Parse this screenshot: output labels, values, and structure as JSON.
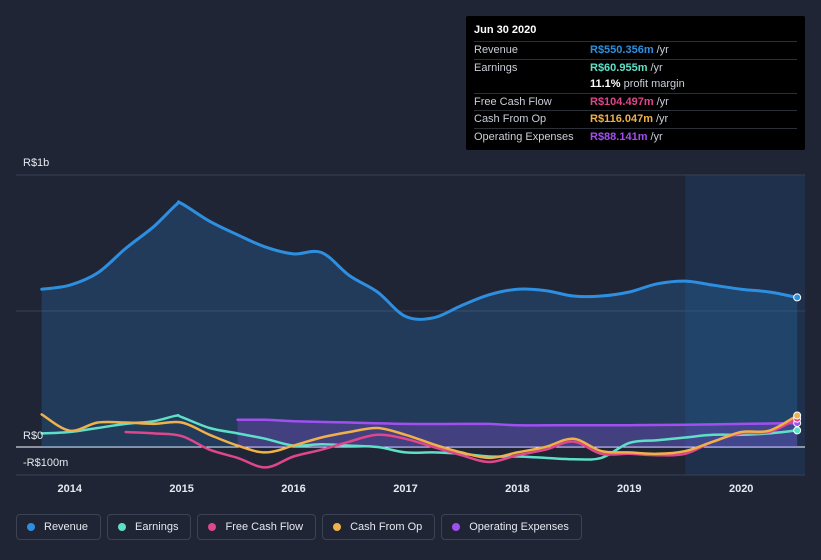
{
  "tooltip": {
    "date": "Jun 30 2020",
    "rows": [
      {
        "label": "Revenue",
        "value": "R$550.356m",
        "unit": "/yr",
        "color": "#2e8fe0"
      },
      {
        "label": "Earnings",
        "value": "R$60.955m",
        "unit": "/yr",
        "color": "#5ee0c8"
      },
      {
        "label": "",
        "value": "11.1%",
        "unit": "profit margin",
        "color": "#ffffff"
      },
      {
        "label": "Free Cash Flow",
        "value": "R$104.497m",
        "unit": "/yr",
        "color": "#e0468c"
      },
      {
        "label": "Cash From Op",
        "value": "R$116.047m",
        "unit": "/yr",
        "color": "#f0b14a"
      },
      {
        "label": "Operating Expenses",
        "value": "R$88.141m",
        "unit": "/yr",
        "color": "#a24ff0"
      }
    ]
  },
  "legend": [
    {
      "label": "Revenue",
      "color": "#2e8fe0"
    },
    {
      "label": "Earnings",
      "color": "#5ee0c8"
    },
    {
      "label": "Free Cash Flow",
      "color": "#e0468c"
    },
    {
      "label": "Cash From Op",
      "color": "#f0b14a"
    },
    {
      "label": "Operating Expenses",
      "color": "#a24ff0"
    }
  ],
  "chart_data": {
    "type": "area",
    "title": "",
    "xlabel": "",
    "ylabel": "",
    "y_tick_labels": {
      "top": "R$1b",
      "zero": "R$0",
      "bottom": "-R$100m"
    },
    "x_tick_labels": [
      "2014",
      "2015",
      "2016",
      "2017",
      "2018",
      "2019",
      "2020"
    ],
    "x_ticks": [
      2014,
      2015,
      2016,
      2017,
      2018,
      2019,
      2020
    ],
    "xlim": [
      2013.52,
      2020.57
    ],
    "ylim": [
      -100,
      1000
    ],
    "forecast_region_start": 2019.5,
    "series": [
      {
        "name": "Revenue",
        "color": "#2e8fe0",
        "fill": true,
        "points": [
          [
            2013.75,
            580
          ],
          [
            2014.0,
            595
          ],
          [
            2014.25,
            640
          ],
          [
            2014.5,
            730
          ],
          [
            2014.75,
            810
          ],
          [
            2014.95,
            890
          ],
          [
            2015.0,
            895
          ],
          [
            2015.25,
            830
          ],
          [
            2015.5,
            780
          ],
          [
            2015.75,
            735
          ],
          [
            2016.0,
            710
          ],
          [
            2016.25,
            715
          ],
          [
            2016.5,
            630
          ],
          [
            2016.75,
            570
          ],
          [
            2017.0,
            480
          ],
          [
            2017.25,
            475
          ],
          [
            2017.5,
            520
          ],
          [
            2017.75,
            560
          ],
          [
            2018.0,
            580
          ],
          [
            2018.25,
            575
          ],
          [
            2018.5,
            555
          ],
          [
            2018.75,
            555
          ],
          [
            2019.0,
            570
          ],
          [
            2019.25,
            600
          ],
          [
            2019.5,
            610
          ],
          [
            2019.75,
            595
          ],
          [
            2020.0,
            580
          ],
          [
            2020.25,
            570
          ],
          [
            2020.5,
            550
          ]
        ]
      },
      {
        "name": "Earnings",
        "color": "#5ee0c8",
        "fill": false,
        "points": [
          [
            2013.75,
            50
          ],
          [
            2014.0,
            55
          ],
          [
            2014.25,
            70
          ],
          [
            2014.5,
            85
          ],
          [
            2014.75,
            95
          ],
          [
            2014.95,
            115
          ],
          [
            2015.0,
            110
          ],
          [
            2015.25,
            70
          ],
          [
            2015.5,
            50
          ],
          [
            2015.75,
            30
          ],
          [
            2016.0,
            5
          ],
          [
            2016.25,
            10
          ],
          [
            2016.5,
            5
          ],
          [
            2016.75,
            0
          ],
          [
            2017.0,
            -20
          ],
          [
            2017.25,
            -20
          ],
          [
            2017.5,
            -25
          ],
          [
            2017.75,
            -35
          ],
          [
            2018.0,
            -35
          ],
          [
            2018.25,
            -40
          ],
          [
            2018.5,
            -45
          ],
          [
            2018.75,
            -40
          ],
          [
            2019.0,
            15
          ],
          [
            2019.25,
            25
          ],
          [
            2019.5,
            35
          ],
          [
            2019.75,
            45
          ],
          [
            2020.0,
            45
          ],
          [
            2020.25,
            50
          ],
          [
            2020.5,
            61
          ]
        ]
      },
      {
        "name": "Free Cash Flow",
        "color": "#e0468c",
        "fill": false,
        "points": [
          [
            2014.5,
            55
          ],
          [
            2014.75,
            50
          ],
          [
            2015.0,
            40
          ],
          [
            2015.25,
            -10
          ],
          [
            2015.5,
            -40
          ],
          [
            2015.75,
            -75
          ],
          [
            2016.0,
            -35
          ],
          [
            2016.25,
            -10
          ],
          [
            2016.5,
            20
          ],
          [
            2016.75,
            45
          ],
          [
            2017.0,
            30
          ],
          [
            2017.25,
            0
          ],
          [
            2017.5,
            -30
          ],
          [
            2017.75,
            -55
          ],
          [
            2018.0,
            -30
          ],
          [
            2018.25,
            -10
          ],
          [
            2018.5,
            20
          ],
          [
            2018.75,
            -25
          ],
          [
            2019.0,
            -25
          ],
          [
            2019.25,
            -30
          ],
          [
            2019.5,
            -25
          ],
          [
            2019.75,
            20
          ],
          [
            2020.0,
            50
          ],
          [
            2020.25,
            55
          ],
          [
            2020.5,
            104
          ]
        ]
      },
      {
        "name": "Cash From Op",
        "color": "#f0b14a",
        "fill": false,
        "points": [
          [
            2013.75,
            120
          ],
          [
            2014.0,
            60
          ],
          [
            2014.25,
            90
          ],
          [
            2014.5,
            90
          ],
          [
            2014.75,
            85
          ],
          [
            2015.0,
            90
          ],
          [
            2015.25,
            45
          ],
          [
            2015.5,
            5
          ],
          [
            2015.75,
            -20
          ],
          [
            2016.0,
            5
          ],
          [
            2016.25,
            35
          ],
          [
            2016.5,
            55
          ],
          [
            2016.75,
            70
          ],
          [
            2017.0,
            45
          ],
          [
            2017.25,
            10
          ],
          [
            2017.5,
            -20
          ],
          [
            2017.75,
            -40
          ],
          [
            2018.0,
            -20
          ],
          [
            2018.25,
            0
          ],
          [
            2018.5,
            30
          ],
          [
            2018.75,
            -15
          ],
          [
            2019.0,
            -20
          ],
          [
            2019.25,
            -25
          ],
          [
            2019.5,
            -15
          ],
          [
            2019.75,
            20
          ],
          [
            2020.0,
            55
          ],
          [
            2020.25,
            60
          ],
          [
            2020.5,
            116
          ]
        ]
      },
      {
        "name": "Operating Expenses",
        "color": "#a24ff0",
        "fill": true,
        "points": [
          [
            2015.5,
            100
          ],
          [
            2015.75,
            100
          ],
          [
            2016.0,
            95
          ],
          [
            2016.5,
            90
          ],
          [
            2017.0,
            85
          ],
          [
            2017.5,
            85
          ],
          [
            2017.75,
            85
          ],
          [
            2018.0,
            80
          ],
          [
            2018.5,
            80
          ],
          [
            2019.0,
            80
          ],
          [
            2019.5,
            82
          ],
          [
            2020.0,
            85
          ],
          [
            2020.5,
            88
          ]
        ]
      }
    ]
  }
}
